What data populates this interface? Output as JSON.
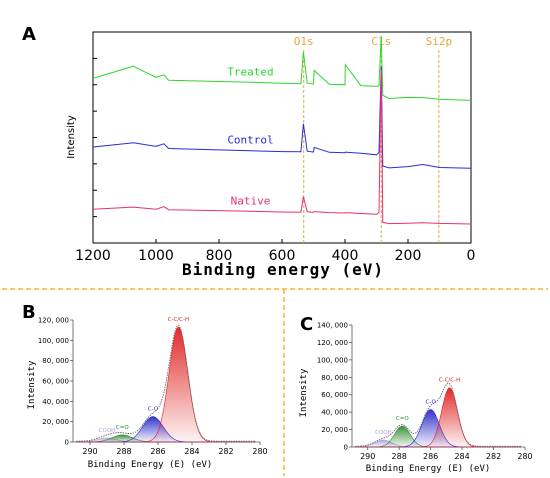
{
  "divider_color": "#f5b731",
  "panel_a": {
    "label": "A",
    "chart_data": {
      "type": "line",
      "xlabel": "Binding energy (eV)",
      "ylabel": "Intensity",
      "xlim": [
        1200,
        0
      ],
      "x_ticks": [
        "1200",
        "1000",
        "800",
        "600",
        "400",
        "200",
        "0"
      ],
      "reference_lines": [
        {
          "label": "O1s",
          "x": 531,
          "color": "#e8a53a"
        },
        {
          "label": "C1s",
          "x": 285,
          "color": "#e8a53a"
        },
        {
          "label": "Si2p",
          "x": 102,
          "color": "#e8a53a"
        }
      ],
      "series": [
        {
          "name": "Treated",
          "color": "#2fd62f",
          "x": [
            1200,
            1072,
            1000,
            975,
            960,
            700,
            600,
            540,
            532,
            520,
            500,
            498,
            450,
            400,
            399,
            350,
            300,
            292,
            285,
            280,
            260,
            200,
            153,
            100,
            0
          ],
          "y": [
            0.78,
            0.838,
            0.785,
            0.797,
            0.771,
            0.762,
            0.757,
            0.755,
            0.905,
            0.758,
            0.753,
            0.818,
            0.752,
            0.75,
            0.845,
            0.746,
            0.742,
            0.745,
            0.98,
            0.7,
            0.685,
            0.69,
            0.689,
            0.681,
            0.676
          ]
        },
        {
          "name": "Control",
          "color": "#2b2bd9",
          "x": [
            1200,
            1072,
            1000,
            975,
            960,
            700,
            600,
            540,
            532,
            520,
            500,
            498,
            450,
            400,
            399,
            350,
            300,
            292,
            285,
            280,
            260,
            200,
            153,
            100,
            0
          ],
          "y": [
            0.455,
            0.475,
            0.458,
            0.47,
            0.448,
            0.437,
            0.433,
            0.432,
            0.565,
            0.435,
            0.431,
            0.453,
            0.43,
            0.428,
            0.431,
            0.425,
            0.418,
            0.43,
            0.835,
            0.365,
            0.356,
            0.362,
            0.372,
            0.358,
            0.354
          ]
        },
        {
          "name": "Native",
          "color": "#e3317a",
          "x": [
            1200,
            1072,
            1000,
            975,
            960,
            700,
            600,
            540,
            532,
            520,
            500,
            498,
            450,
            400,
            399,
            350,
            300,
            292,
            285,
            280,
            260,
            200,
            153,
            100,
            0
          ],
          "y": [
            0.16,
            0.17,
            0.16,
            0.172,
            0.158,
            0.15,
            0.147,
            0.146,
            0.22,
            0.148,
            0.145,
            0.149,
            0.144,
            0.142,
            0.144,
            0.14,
            0.136,
            0.145,
            0.82,
            0.098,
            0.092,
            0.094,
            0.096,
            0.093,
            0.09
          ]
        }
      ]
    }
  },
  "panel_b": {
    "label": "B",
    "chart_data": {
      "type": "area",
      "xlabel": "Binding Energy (E) (eV)",
      "ylabel": "Intensity",
      "xlim": [
        291,
        280
      ],
      "ylim": [
        0,
        120000
      ],
      "x_ticks": [
        "290",
        "288",
        "286",
        "284",
        "282",
        "280"
      ],
      "y_ticks": [
        "0",
        "20, 000",
        "40, 000",
        "60, 000",
        "80, 000",
        "100, 000",
        "120, 000"
      ],
      "peaks": [
        {
          "name": "COOH",
          "center": 289.0,
          "height": 4000,
          "sigma": 0.55,
          "color": "#b39ddb"
        },
        {
          "name": "C=O",
          "center": 288.1,
          "height": 7000,
          "sigma": 0.6,
          "color": "#2e8b2e"
        },
        {
          "name": "C-O",
          "center": 286.3,
          "height": 25000,
          "sigma": 0.6,
          "color": "#2828c8"
        },
        {
          "name": "C-C/C-H",
          "center": 284.8,
          "height": 113000,
          "sigma": 0.55,
          "color": "#e02020"
        }
      ]
    }
  },
  "panel_c": {
    "label": "C",
    "chart_data": {
      "type": "area",
      "xlabel": "Binding Energy (E) (eV)",
      "ylabel": "Intensity",
      "xlim": [
        291,
        280
      ],
      "ylim": [
        0,
        140000
      ],
      "x_ticks": [
        "290",
        "288",
        "286",
        "284",
        "282",
        "280"
      ],
      "y_ticks": [
        "0",
        "20, 000",
        "40, 000",
        "60, 000",
        "80, 000",
        "100, 000",
        "120, 000",
        "140, 000"
      ],
      "peaks": [
        {
          "name": "COOH",
          "center": 289.0,
          "height": 8000,
          "sigma": 0.55,
          "color": "#b39ddb"
        },
        {
          "name": "C=O",
          "center": 287.8,
          "height": 24000,
          "sigma": 0.5,
          "color": "#2e8b2e"
        },
        {
          "name": "C-O",
          "center": 286.0,
          "height": 43000,
          "sigma": 0.55,
          "color": "#2828c8"
        },
        {
          "name": "C-C/C-H",
          "center": 284.8,
          "height": 68000,
          "sigma": 0.5,
          "color": "#e02020"
        }
      ]
    }
  }
}
